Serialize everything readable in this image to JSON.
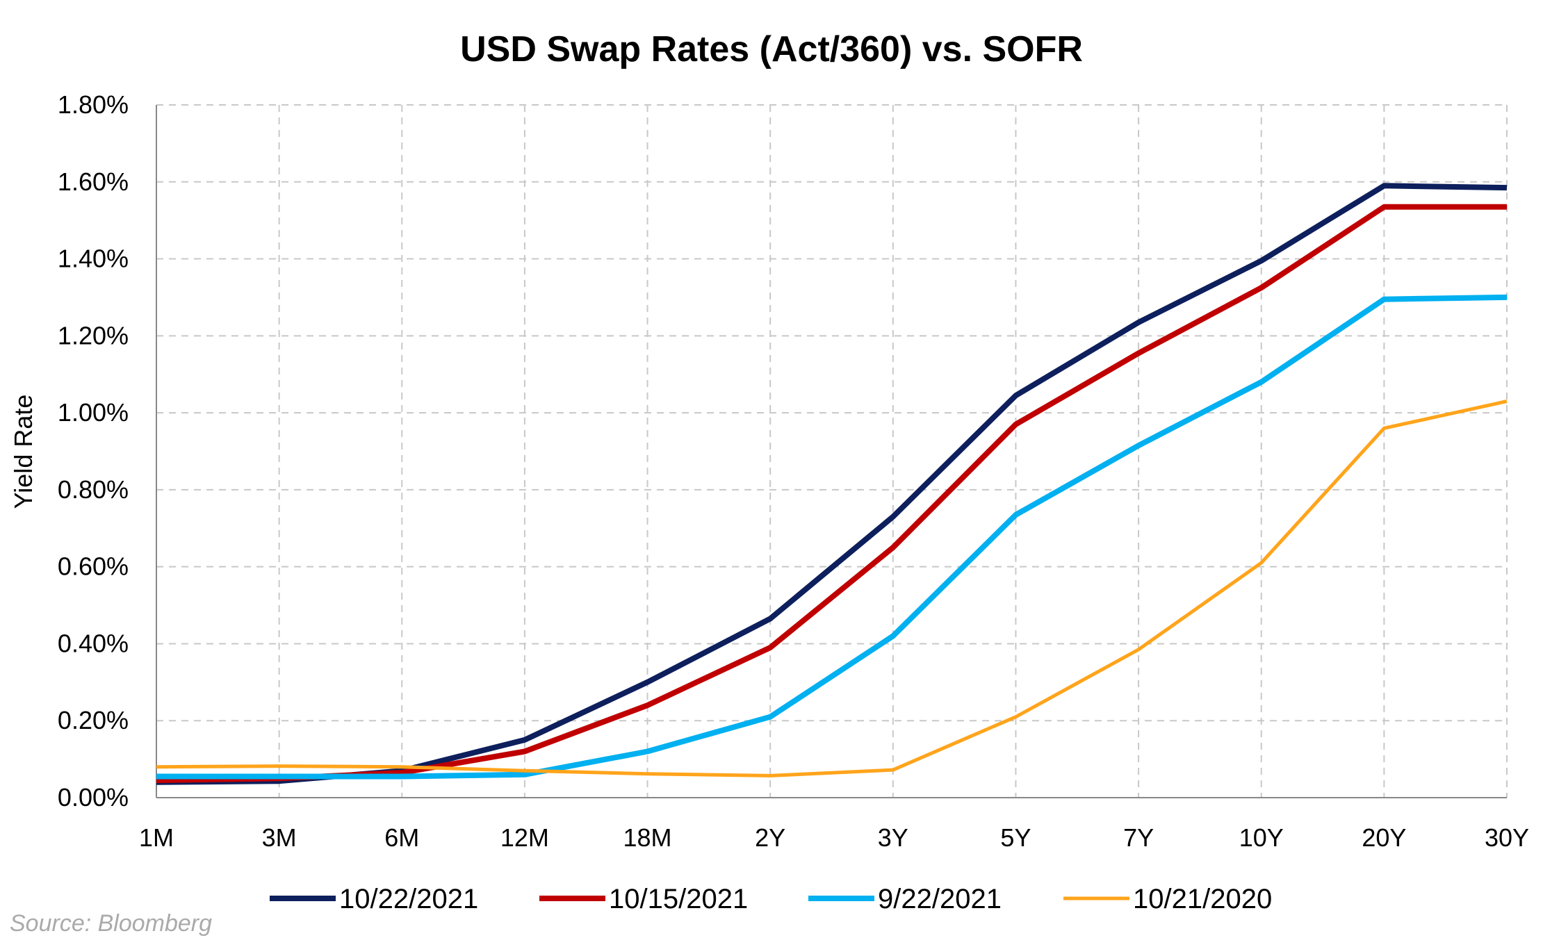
{
  "chart_data": {
    "type": "line",
    "title": "USD Swap Rates (Act/360) vs. SOFR",
    "ylabel": "Yield Rate",
    "xlabel": "",
    "categories": [
      "1M",
      "3M",
      "6M",
      "12M",
      "18M",
      "2Y",
      "3Y",
      "5Y",
      "7Y",
      "10Y",
      "20Y",
      "30Y"
    ],
    "ylim": [
      0,
      1.8
    ],
    "yticks": [
      0,
      0.2,
      0.4,
      0.6,
      0.8,
      1.0,
      1.2,
      1.4,
      1.6,
      1.8
    ],
    "ytick_labels": [
      "0.00%",
      "0.20%",
      "0.40%",
      "0.60%",
      "0.80%",
      "1.00%",
      "1.20%",
      "1.40%",
      "1.60%",
      "1.80%"
    ],
    "grid": true,
    "legend_position": "bottom",
    "series": [
      {
        "name": "10/22/2021",
        "color": "#0d1f5c",
        "width": 8,
        "values": [
          0.04,
          0.043,
          0.07,
          0.15,
          0.3,
          0.465,
          0.73,
          1.045,
          1.235,
          1.395,
          1.59,
          1.585
        ]
      },
      {
        "name": "10/15/2021",
        "color": "#c00000",
        "width": 8,
        "values": [
          0.045,
          0.05,
          0.065,
          0.12,
          0.24,
          0.39,
          0.65,
          0.97,
          1.155,
          1.325,
          1.535,
          1.535
        ]
      },
      {
        "name": "9/22/2021",
        "color": "#00b0f0",
        "width": 8,
        "values": [
          0.055,
          0.055,
          0.055,
          0.06,
          0.12,
          0.21,
          0.42,
          0.735,
          0.915,
          1.08,
          1.295,
          1.3
        ]
      },
      {
        "name": "10/21/2020",
        "color": "#ffa41b",
        "width": 5,
        "values": [
          0.08,
          0.082,
          0.08,
          0.07,
          0.062,
          0.057,
          0.072,
          0.21,
          0.385,
          0.61,
          0.96,
          1.03
        ]
      }
    ],
    "source": "Source: Bloomberg"
  }
}
